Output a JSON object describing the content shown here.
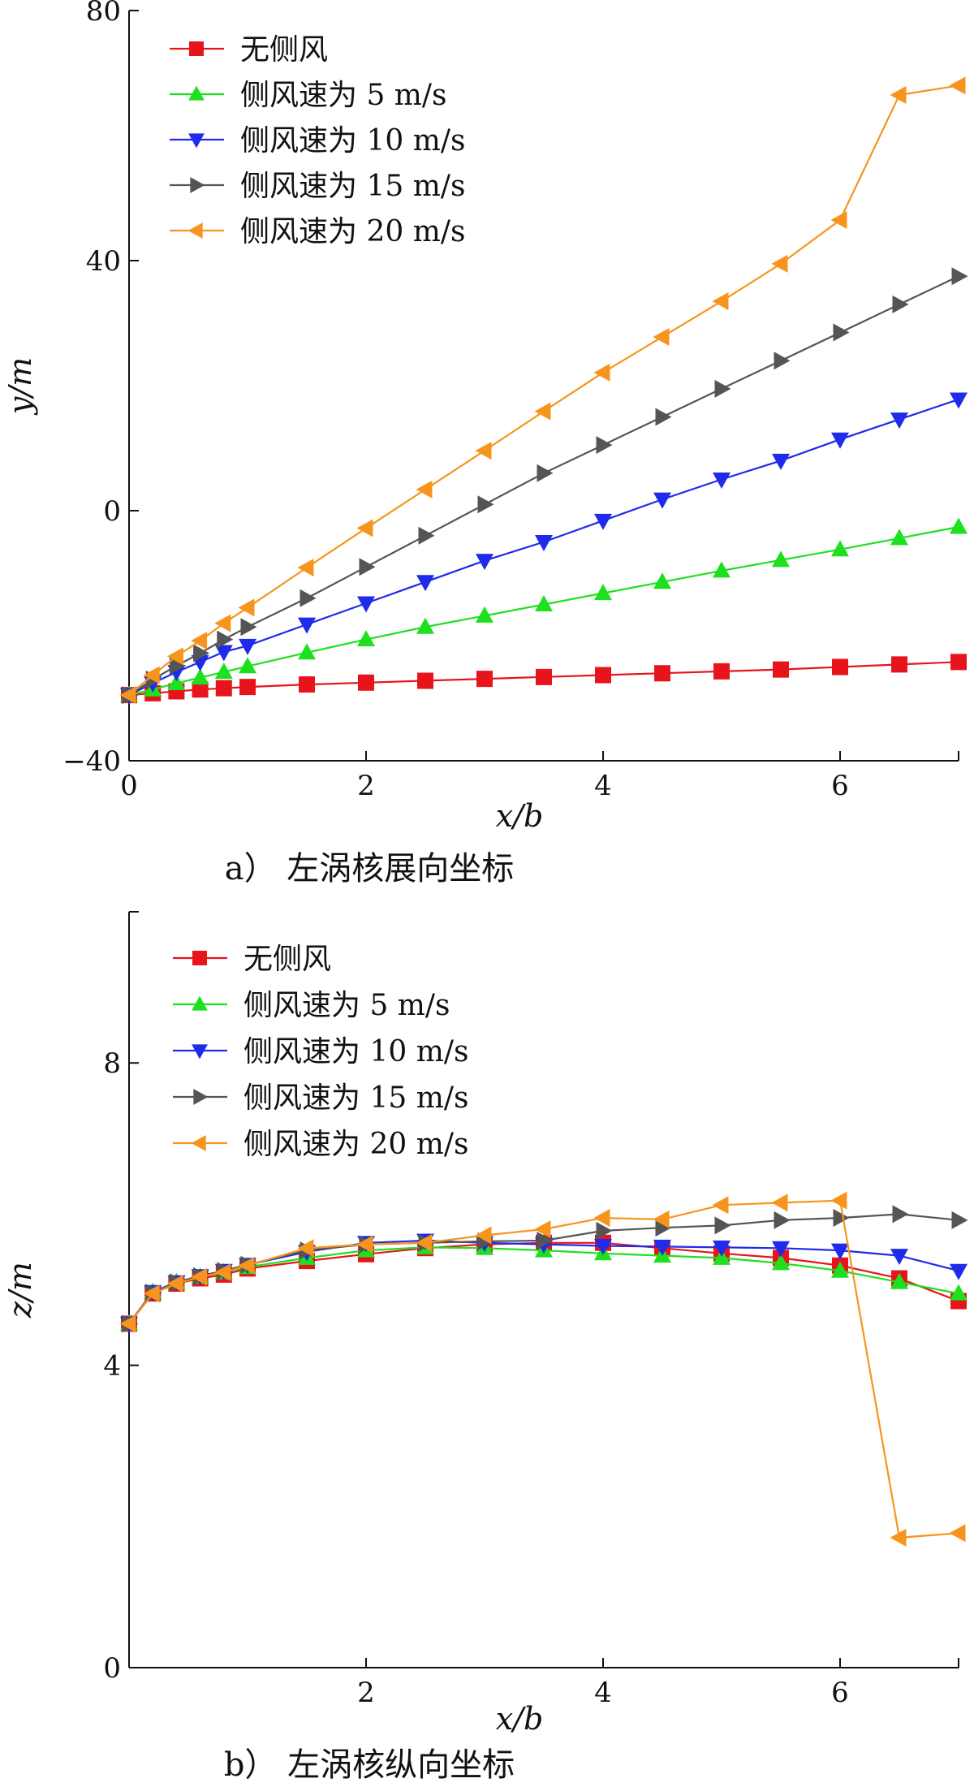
{
  "chart_data": [
    {
      "type": "line",
      "caption": "a） 左涡核展向坐标",
      "xlabel": "x/b",
      "ylabel": "y/m",
      "xlim": [
        0,
        7
      ],
      "ylim": [
        -40,
        80
      ],
      "xticks": [
        0,
        2,
        4,
        6
      ],
      "yticks": [
        -40,
        0,
        40,
        80
      ],
      "x": [
        0,
        0.2,
        0.4,
        0.6,
        0.8,
        1.0,
        1.5,
        2.0,
        2.5,
        3.0,
        3.5,
        4.0,
        4.5,
        5.0,
        5.5,
        6.0,
        6.5,
        7.0
      ],
      "legend_position": "top-left",
      "series": [
        {
          "name": "无侧风",
          "color": "#e8141b",
          "marker": "square",
          "values": [
            -29.5,
            -29.2,
            -28.9,
            -28.6,
            -28.4,
            -28.2,
            -27.8,
            -27.5,
            -27.2,
            -26.9,
            -26.6,
            -26.3,
            -26.0,
            -25.7,
            -25.4,
            -25.0,
            -24.6,
            -24.2
          ]
        },
        {
          "name": "侧风速为 5 m/s",
          "color": "#1ee01e",
          "marker": "triangle-up",
          "values": [
            -29.5,
            -28.6,
            -27.6,
            -26.7,
            -25.8,
            -24.9,
            -22.7,
            -20.6,
            -18.6,
            -16.8,
            -15.0,
            -13.2,
            -11.4,
            -9.6,
            -7.9,
            -6.2,
            -4.4,
            -2.6
          ]
        },
        {
          "name": "侧风速为 10 m/s",
          "color": "#1f2bea",
          "marker": "triangle-down",
          "values": [
            -29.5,
            -27.6,
            -25.8,
            -24.2,
            -22.6,
            -21.6,
            -18.2,
            -14.8,
            -11.4,
            -8.0,
            -5.0,
            -1.6,
            1.8,
            5.0,
            8.0,
            11.4,
            14.6,
            17.8
          ]
        },
        {
          "name": "侧风速为 15 m/s",
          "color": "#555555",
          "marker": "triangle-right",
          "values": [
            -29.5,
            -27.0,
            -24.8,
            -22.8,
            -20.6,
            -18.6,
            -14.0,
            -9.0,
            -4.0,
            1.0,
            6.0,
            10.5,
            15.0,
            19.5,
            24.0,
            28.5,
            33.0,
            37.5
          ]
        },
        {
          "name": "侧风速为 20 m/s",
          "color": "#f7941d",
          "marker": "triangle-left",
          "values": [
            -29.5,
            -26.3,
            -23.3,
            -20.8,
            -18.0,
            -15.5,
            -9.1,
            -2.8,
            3.4,
            9.6,
            15.9,
            22.1,
            27.8,
            33.5,
            39.5,
            46.5,
            66.5,
            68.0
          ]
        }
      ]
    },
    {
      "type": "line",
      "caption": "b） 左涡核纵向坐标",
      "xlabel": "x/b",
      "ylabel": "z/m",
      "xlim": [
        0,
        7
      ],
      "ylim": [
        0,
        10
      ],
      "xticks": [
        2,
        4,
        6
      ],
      "yticks": [
        0,
        4,
        8
      ],
      "x": [
        0,
        0.2,
        0.4,
        0.6,
        0.8,
        1.0,
        1.5,
        2.0,
        2.5,
        3.0,
        3.5,
        4.0,
        4.5,
        5.0,
        5.5,
        6.0,
        6.5,
        7.0
      ],
      "legend_position": "top-left",
      "series": [
        {
          "name": "无侧风",
          "color": "#e8141b",
          "marker": "square",
          "values": [
            4.55,
            4.95,
            5.08,
            5.15,
            5.2,
            5.28,
            5.38,
            5.47,
            5.55,
            5.6,
            5.62,
            5.62,
            5.55,
            5.48,
            5.42,
            5.32,
            5.15,
            4.85
          ]
        },
        {
          "name": "侧风速为 5 m/s",
          "color": "#1ee01e",
          "marker": "triangle-up",
          "values": [
            4.55,
            4.97,
            5.1,
            5.17,
            5.23,
            5.3,
            5.42,
            5.52,
            5.56,
            5.55,
            5.52,
            5.48,
            5.45,
            5.42,
            5.35,
            5.25,
            5.1,
            4.95
          ]
        },
        {
          "name": "侧风速为 10 m/s",
          "color": "#1f2bea",
          "marker": "triangle-down",
          "values": [
            4.55,
            4.97,
            5.1,
            5.18,
            5.25,
            5.33,
            5.5,
            5.62,
            5.65,
            5.62,
            5.6,
            5.58,
            5.57,
            5.56,
            5.55,
            5.52,
            5.45,
            5.25
          ]
        },
        {
          "name": "侧风速为 15 m/s",
          "color": "#555555",
          "marker": "triangle-right",
          "values": [
            4.55,
            4.96,
            5.1,
            5.18,
            5.25,
            5.33,
            5.52,
            5.6,
            5.62,
            5.64,
            5.65,
            5.78,
            5.82,
            5.85,
            5.92,
            5.95,
            6.0,
            5.92
          ]
        },
        {
          "name": "侧风速为 20 m/s",
          "color": "#f7941d",
          "marker": "triangle-left",
          "values": [
            4.55,
            4.95,
            5.08,
            5.17,
            5.23,
            5.32,
            5.55,
            5.6,
            5.62,
            5.72,
            5.8,
            5.95,
            5.93,
            6.12,
            6.15,
            6.18,
            1.72,
            1.78
          ]
        }
      ]
    }
  ]
}
